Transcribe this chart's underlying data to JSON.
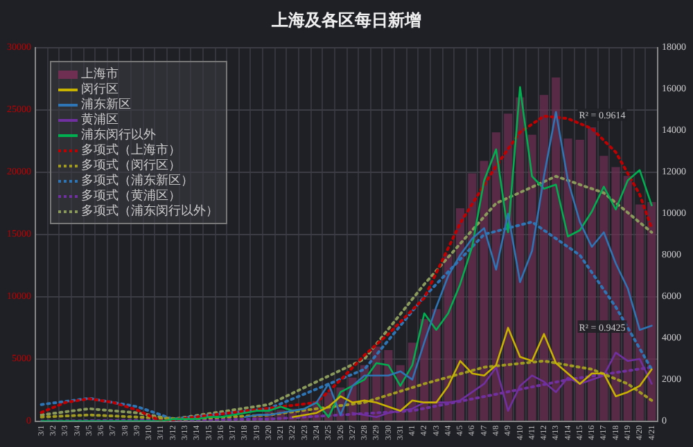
{
  "chart_data": {
    "type": "bar",
    "title": "上海及各区每日新增",
    "categories": [
      "3/1",
      "3/2",
      "3/3",
      "3/4",
      "3/5",
      "3/6",
      "3/7",
      "3/8",
      "3/9",
      "3/10",
      "3/11",
      "3/12",
      "3/13",
      "3/14",
      "3/15",
      "3/16",
      "3/17",
      "3/18",
      "3/19",
      "3/20",
      "3/21",
      "3/22",
      "3/23",
      "3/24",
      "3/25",
      "3/26",
      "3/27",
      "3/28",
      "3/29",
      "3/30",
      "3/31",
      "4/1",
      "4/2",
      "4/3",
      "4/4",
      "4/5",
      "4/6",
      "4/7",
      "4/8",
      "4/9",
      "4/10",
      "4/11",
      "4/12",
      "4/13",
      "4/14",
      "4/15",
      "4/16",
      "4/17",
      "4/18",
      "4/19",
      "4/20",
      "4/21"
    ],
    "series": [
      {
        "name": "上海市",
        "color": "#6e2f52",
        "values": [
          null,
          null,
          null,
          null,
          null,
          null,
          null,
          null,
          null,
          null,
          null,
          null,
          null,
          null,
          null,
          null,
          null,
          null,
          500,
          800,
          900,
          1000,
          1000,
          1600,
          2300,
          2700,
          3500,
          4500,
          6000,
          5700,
          4500,
          6300,
          8200,
          9000,
          13400,
          17100,
          19900,
          20900,
          23200,
          24700,
          26000,
          23000,
          26200,
          27600,
          22700,
          22600,
          23600,
          21300,
          20400,
          19700,
          17400,
          17600
        ]
      },
      {
        "name": "闵行区",
        "type": "line",
        "axis": "y2",
        "color": "#c8b400",
        "values": [
          null,
          null,
          null,
          null,
          null,
          null,
          null,
          null,
          null,
          null,
          null,
          null,
          null,
          null,
          null,
          null,
          null,
          null,
          null,
          null,
          null,
          200,
          300,
          400,
          700,
          1200,
          900,
          1000,
          900,
          700,
          500,
          1000,
          900,
          900,
          1700,
          2900,
          2300,
          2200,
          2700,
          4500,
          3100,
          2900,
          4200,
          2800,
          2300,
          1800,
          2300,
          2300,
          1200,
          1400,
          1700,
          2500
        ]
      },
      {
        "name": "浦东新区",
        "type": "line",
        "axis": "y2",
        "color": "#2e75b6",
        "values": [
          null,
          null,
          null,
          null,
          null,
          null,
          null,
          null,
          null,
          null,
          null,
          null,
          null,
          null,
          null,
          null,
          null,
          200,
          300,
          300,
          400,
          500,
          600,
          900,
          1800,
          300,
          1700,
          2200,
          2200,
          2200,
          2400,
          2000,
          3800,
          5500,
          7000,
          8000,
          8800,
          9300,
          7300,
          10000,
          6700,
          8200,
          11800,
          14900,
          11600,
          9600,
          8400,
          9100,
          7600,
          6400,
          4400,
          4600
        ]
      },
      {
        "name": "黄浦区",
        "type": "line",
        "axis": "y2",
        "color": "#7030a0",
        "values": [
          null,
          null,
          null,
          null,
          null,
          null,
          null,
          null,
          null,
          null,
          null,
          null,
          null,
          null,
          null,
          null,
          null,
          null,
          null,
          null,
          null,
          null,
          null,
          null,
          null,
          null,
          400,
          300,
          200,
          400,
          500,
          600,
          900,
          900,
          900,
          1000,
          1400,
          1800,
          2600,
          500,
          1700,
          2200,
          1900,
          1400,
          2100,
          1800,
          2000,
          2200,
          3300,
          2900,
          3000,
          1800
        ]
      },
      {
        "name": "浦东闵行以外",
        "type": "line",
        "axis": "y2",
        "color": "#00b050",
        "values": [
          0,
          0,
          0,
          0,
          0,
          0,
          0,
          0,
          0,
          0,
          0,
          100,
          100,
          100,
          200,
          200,
          300,
          400,
          500,
          500,
          700,
          500,
          600,
          900,
          200,
          1400,
          1700,
          2000,
          2800,
          2700,
          1700,
          2700,
          5200,
          4400,
          5200,
          6600,
          8400,
          11600,
          13100,
          9100,
          16100,
          11800,
          11200,
          11400,
          8900,
          9200,
          10100,
          11300,
          10200,
          11600,
          12100,
          10400
        ]
      },
      {
        "name": "多项式（上海市）",
        "type": "line",
        "line_style": "dotted",
        "color": "#c00000",
        "x": [
          "3/1",
          "3/3",
          "3/5",
          "3/7",
          "3/9",
          "3/11",
          "3/24",
          "3/26",
          "3/28",
          "3/30",
          "4/2",
          "4/5",
          "4/8",
          "4/10",
          "4/12",
          "4/14",
          "4/16",
          "4/18",
          "4/20",
          "4/21"
        ],
        "values": [
          700,
          1500,
          1800,
          1500,
          900,
          0,
          1500,
          3300,
          5300,
          7000,
          9900,
          15900,
          20500,
          23200,
          24500,
          24300,
          23500,
          21600,
          18200,
          15500
        ]
      },
      {
        "name": "多项式（闵行区）",
        "type": "line",
        "line_style": "dotted",
        "axis": "y2",
        "color": "#a09a20",
        "x": [
          "3/1",
          "3/5",
          "3/9",
          "3/13",
          "3/20",
          "3/28",
          "4/2",
          "4/7",
          "4/12",
          "4/16",
          "4/19",
          "4/21"
        ],
        "values": [
          200,
          300,
          200,
          100,
          300,
          900,
          1800,
          2600,
          2900,
          2500,
          1800,
          1000
        ]
      },
      {
        "name": "多项式（浦东新区）",
        "type": "line",
        "line_style": "dotted",
        "axis": "y2",
        "color": "#2e75b6",
        "x": [
          "3/1",
          "3/5",
          "3/9",
          "3/12",
          "3/20",
          "3/28",
          "4/2",
          "4/7",
          "4/11",
          "4/15",
          "4/18",
          "4/21"
        ],
        "values": [
          800,
          1100,
          700,
          100,
          600,
          2500,
          6000,
          9000,
          9600,
          8000,
          5500,
          2500
        ]
      },
      {
        "name": "多项式（黄浦区）",
        "type": "line",
        "line_style": "dotted",
        "axis": "y2",
        "color": "#7030a0",
        "x": [
          "3/1",
          "3/20",
          "4/1",
          "4/8",
          "4/14",
          "4/21"
        ],
        "values": [
          0,
          100,
          500,
          1300,
          2000,
          2600
        ]
      },
      {
        "name": "多项式（浦东闵行以外）",
        "type": "line",
        "line_style": "dotted",
        "axis": "y2",
        "color": "#8a9a5b",
        "x": [
          "3/1",
          "3/5",
          "3/9",
          "3/12",
          "3/20",
          "3/28",
          "4/2",
          "4/8",
          "4/13",
          "4/17",
          "4/21"
        ],
        "values": [
          300,
          600,
          400,
          100,
          800,
          3000,
          6600,
          10500,
          11800,
          11000,
          9100
        ]
      }
    ],
    "ylim": [
      0,
      30000
    ],
    "yticks": [
      0,
      5000,
      10000,
      15000,
      20000,
      25000,
      30000
    ],
    "y2lim": [
      0,
      18000
    ],
    "y2ticks": [
      0,
      2000,
      4000,
      6000,
      8000,
      10000,
      12000,
      14000,
      16000,
      18000
    ],
    "annotations": [
      "R² = 0.9614",
      "R² = 0.9425"
    ],
    "grid": true,
    "legend": "top left",
    "marker": "none"
  }
}
